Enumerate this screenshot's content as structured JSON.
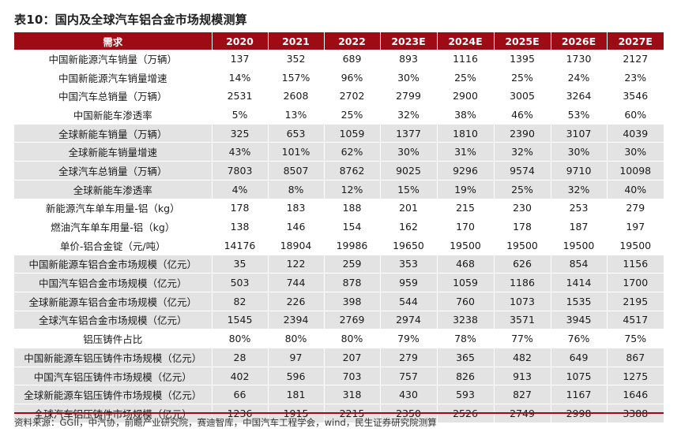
{
  "title": "表10：国内及全球汽车铝合金市场规模测算",
  "table": {
    "headers": [
      "需求",
      "2020",
      "2021",
      "2022",
      "2023E",
      "2024E",
      "2025E",
      "2026E",
      "2027E"
    ],
    "rows": [
      {
        "label": "中国新能源汽车销量（万辆）",
        "values": [
          "137",
          "352",
          "689",
          "893",
          "1116",
          "1395",
          "1730",
          "2127"
        ],
        "shade": false
      },
      {
        "label": "中国新能源汽车销量增速",
        "values": [
          "14%",
          "157%",
          "96%",
          "30%",
          "25%",
          "25%",
          "24%",
          "23%"
        ],
        "shade": false
      },
      {
        "label": "中国汽车总销量（万辆）",
        "values": [
          "2531",
          "2608",
          "2702",
          "2799",
          "2900",
          "3005",
          "3264",
          "3546"
        ],
        "shade": false
      },
      {
        "label": "中国新能车渗透率",
        "values": [
          "5%",
          "13%",
          "25%",
          "32%",
          "38%",
          "46%",
          "53%",
          "60%"
        ],
        "shade": false
      },
      {
        "label": "全球新能车销量（万辆）",
        "values": [
          "325",
          "653",
          "1059",
          "1377",
          "1810",
          "2390",
          "3107",
          "4039"
        ],
        "shade": true
      },
      {
        "label": "全球新能车销量增速",
        "values": [
          "43%",
          "101%",
          "62%",
          "30%",
          "31%",
          "32%",
          "30%",
          "30%"
        ],
        "shade": true
      },
      {
        "label": "全球汽车总销量（万辆）",
        "values": [
          "7803",
          "8507",
          "8762",
          "9025",
          "9296",
          "9574",
          "9710",
          "10098"
        ],
        "shade": true
      },
      {
        "label": "全球新能车渗透率",
        "values": [
          "4%",
          "8%",
          "12%",
          "15%",
          "19%",
          "25%",
          "32%",
          "40%"
        ],
        "shade": true
      },
      {
        "label": "新能源汽车单车用量-铝（kg）",
        "values": [
          "178",
          "183",
          "188",
          "201",
          "215",
          "230",
          "253",
          "279"
        ],
        "shade": false
      },
      {
        "label": "燃油汽车单车用量-铝（kg）",
        "values": [
          "138",
          "146",
          "154",
          "162",
          "170",
          "178",
          "187",
          "197"
        ],
        "shade": false
      },
      {
        "label": "单价-铝合金锭（元/吨）",
        "values": [
          "14176",
          "18904",
          "19986",
          "19650",
          "19500",
          "19500",
          "19500",
          "19500"
        ],
        "shade": false
      },
      {
        "label": "中国新能源车铝合金市场规模（亿元）",
        "values": [
          "35",
          "122",
          "259",
          "353",
          "468",
          "626",
          "854",
          "1156"
        ],
        "shade": true
      },
      {
        "label": "中国汽车铝合金市场规模（亿元）",
        "values": [
          "503",
          "744",
          "878",
          "959",
          "1059",
          "1186",
          "1414",
          "1700"
        ],
        "shade": true
      },
      {
        "label": "全球新能源车铝合金市场规模（亿元）",
        "values": [
          "82",
          "226",
          "398",
          "544",
          "760",
          "1073",
          "1535",
          "2195"
        ],
        "shade": true
      },
      {
        "label": "全球汽车铝合金市场规模（亿元）",
        "values": [
          "1545",
          "2394",
          "2769",
          "2974",
          "3238",
          "3571",
          "3945",
          "4517"
        ],
        "shade": true
      },
      {
        "label": "铝压铸件占比",
        "values": [
          "80%",
          "80%",
          "80%",
          "79%",
          "78%",
          "77%",
          "76%",
          "75%"
        ],
        "shade": false
      },
      {
        "label": "中国新能源车铝压铸件市场规模（亿元）",
        "values": [
          "28",
          "97",
          "207",
          "279",
          "365",
          "482",
          "649",
          "867"
        ],
        "shade": true
      },
      {
        "label": "中国汽车铝压铸件市场规模（亿元）",
        "values": [
          "402",
          "596",
          "703",
          "757",
          "826",
          "913",
          "1075",
          "1275"
        ],
        "shade": true
      },
      {
        "label": "全球新能源车铝压铸件市场规模（亿元）",
        "values": [
          "66",
          "181",
          "318",
          "430",
          "593",
          "827",
          "1167",
          "1646"
        ],
        "shade": true
      },
      {
        "label": "全球汽车铝压铸件市场规模（亿元）",
        "values": [
          "1236",
          "1915",
          "2215",
          "2350",
          "2526",
          "2749",
          "2998",
          "3388"
        ],
        "shade": true
      }
    ]
  },
  "source": "资料来源：GGII，中汽协，前瞻产业研究院，赛迪智库，中国汽车工程学会，wind，民生证券研究院测算",
  "colors": {
    "header_bg": "#9e0b14",
    "shade_bg": "#e3e3e3"
  }
}
